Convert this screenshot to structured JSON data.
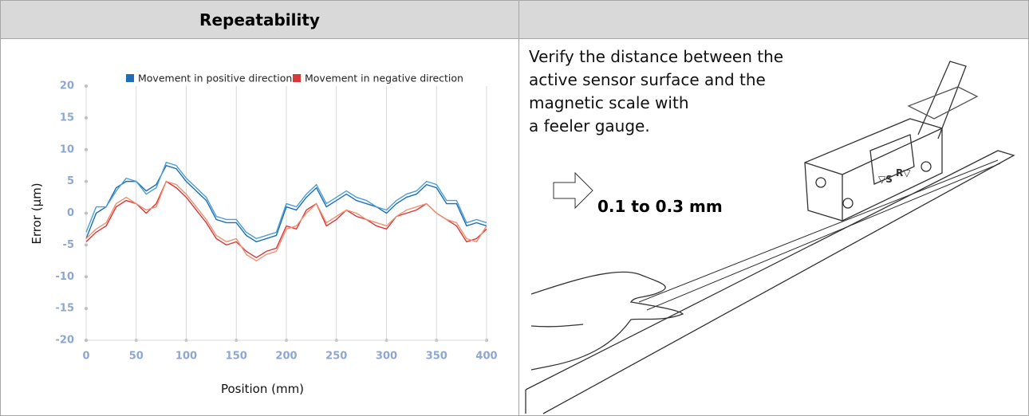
{
  "header": {
    "title": "Repeatability"
  },
  "description": {
    "lines": [
      "Verify the distance between the",
      "active sensor surface and the",
      "magnetic scale with",
      "a feeler gauge."
    ],
    "annotation": "0.1 to 0.3 mm"
  },
  "chart_data": {
    "type": "line",
    "xlabel": "Position (mm)",
    "ylabel": "Error (µm)",
    "x": [
      0,
      10,
      20,
      30,
      40,
      50,
      60,
      70,
      80,
      90,
      100,
      110,
      120,
      130,
      140,
      150,
      160,
      170,
      180,
      190,
      200,
      210,
      220,
      230,
      240,
      250,
      260,
      270,
      280,
      290,
      300,
      310,
      320,
      330,
      340,
      350,
      360,
      370,
      380,
      390,
      400
    ],
    "series": [
      {
        "name": "Movement in positive direction",
        "color": "#1f6db3",
        "runs": [
          {
            "color": "#1f6db3",
            "values": [
              -4,
              0,
              1,
              4,
              5,
              5,
              3.5,
              4.5,
              7.5,
              7,
              5,
              3.5,
              2,
              -1,
              -1.5,
              -1.5,
              -3.5,
              -4.5,
              -4,
              -3.5,
              1,
              0.5,
              2.5,
              4,
              1,
              2,
              3,
              2,
              1.5,
              1,
              0,
              1.5,
              2.5,
              3,
              4.5,
              4,
              1.5,
              1.5,
              -2,
              -1.5,
              -2
            ]
          },
          {
            "color": "#4a9fd8",
            "values": [
              -3,
              1,
              1,
              3.5,
              5.5,
              5,
              3,
              4,
              8,
              7.5,
              5.5,
              4,
              2.5,
              -0.5,
              -1,
              -1,
              -3,
              -4,
              -3.5,
              -3,
              1.5,
              1,
              3,
              4.5,
              1.5,
              2.5,
              3.5,
              2.5,
              2,
              1,
              0.5,
              2,
              3,
              3.5,
              5,
              4.5,
              2,
              2,
              -1.5,
              -1,
              -1.5
            ]
          }
        ]
      },
      {
        "name": "Movement in negative direction",
        "color": "#d9383a",
        "runs": [
          {
            "color": "#d9383a",
            "values": [
              -4.5,
              -3,
              -2,
              1,
              2,
              1.5,
              0,
              1.5,
              5,
              4,
              2.5,
              0.5,
              -1.5,
              -4,
              -5,
              -4.5,
              -6,
              -7,
              -6,
              -5.5,
              -2,
              -2.5,
              0.5,
              1.5,
              -2,
              -1,
              0.5,
              -0.5,
              -1,
              -2,
              -2.5,
              -0.5,
              0,
              0.5,
              1.5,
              0,
              -1,
              -2,
              -4.5,
              -4,
              -2.5
            ]
          },
          {
            "color": "#f09070",
            "values": [
              -4,
              -2.5,
              -1.5,
              1.5,
              2.5,
              1.5,
              0.5,
              1,
              5,
              4.5,
              3,
              1,
              -1,
              -3.5,
              -4.5,
              -4,
              -6.5,
              -7.5,
              -6.5,
              -6,
              -2.5,
              -2,
              0,
              1.5,
              -1.5,
              -0.5,
              0.5,
              0,
              -1,
              -1.5,
              -2,
              -0.5,
              0.5,
              1,
              1.5,
              0,
              -1,
              -1.5,
              -4,
              -4.5,
              -2
            ]
          }
        ]
      }
    ],
    "xlim": [
      0,
      400
    ],
    "xticks": [
      0,
      50,
      100,
      150,
      200,
      250,
      300,
      350,
      400
    ],
    "ylim": [
      -20,
      20
    ],
    "yticks": [
      -20,
      -15,
      -10,
      -5,
      0,
      5,
      10,
      15,
      20
    ],
    "grid": "x"
  }
}
